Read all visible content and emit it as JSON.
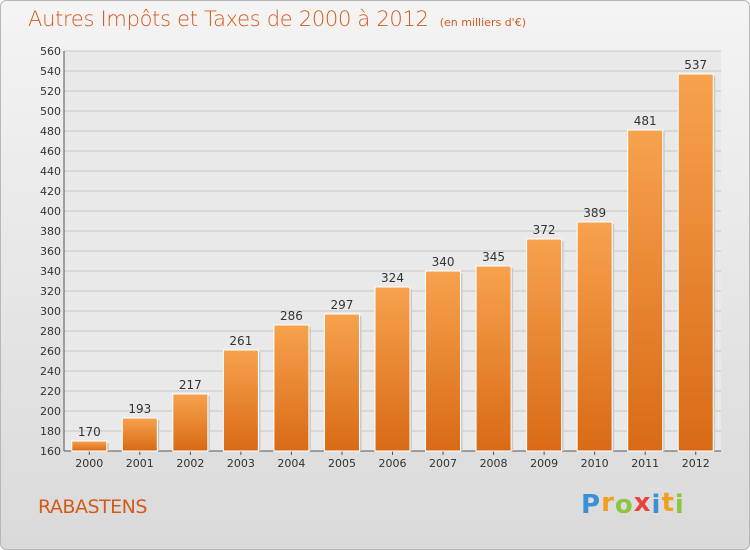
{
  "chart_data": {
    "type": "bar",
    "title": "Autres Impôts et Taxes de 2000 à 2012",
    "subtitle": "(en milliers d'€)",
    "categories": [
      "2000",
      "2001",
      "2002",
      "2003",
      "2004",
      "2005",
      "2006",
      "2007",
      "2008",
      "2009",
      "2010",
      "2011",
      "2012"
    ],
    "values": [
      170,
      193,
      217,
      261,
      286,
      297,
      324,
      340,
      345,
      372,
      389,
      481,
      537
    ],
    "ylim": [
      160,
      560
    ],
    "ytick_step": 20,
    "grid": true,
    "bar_color": "#f08a30",
    "xlabel": "",
    "ylabel": ""
  },
  "location": "RABASTENS",
  "brand": {
    "letters": [
      "P",
      "r",
      "o",
      "x",
      "i",
      "t",
      "i"
    ],
    "colors": [
      "#3a8fd6",
      "#f0a020",
      "#8cc63f",
      "#e8423f",
      "#3a8fd6",
      "#f0a020",
      "#8cc63f"
    ]
  },
  "colors": {
    "accent": "#d45a1c",
    "bar_top": "#f7a24e",
    "bar_bottom": "#d96a15"
  }
}
